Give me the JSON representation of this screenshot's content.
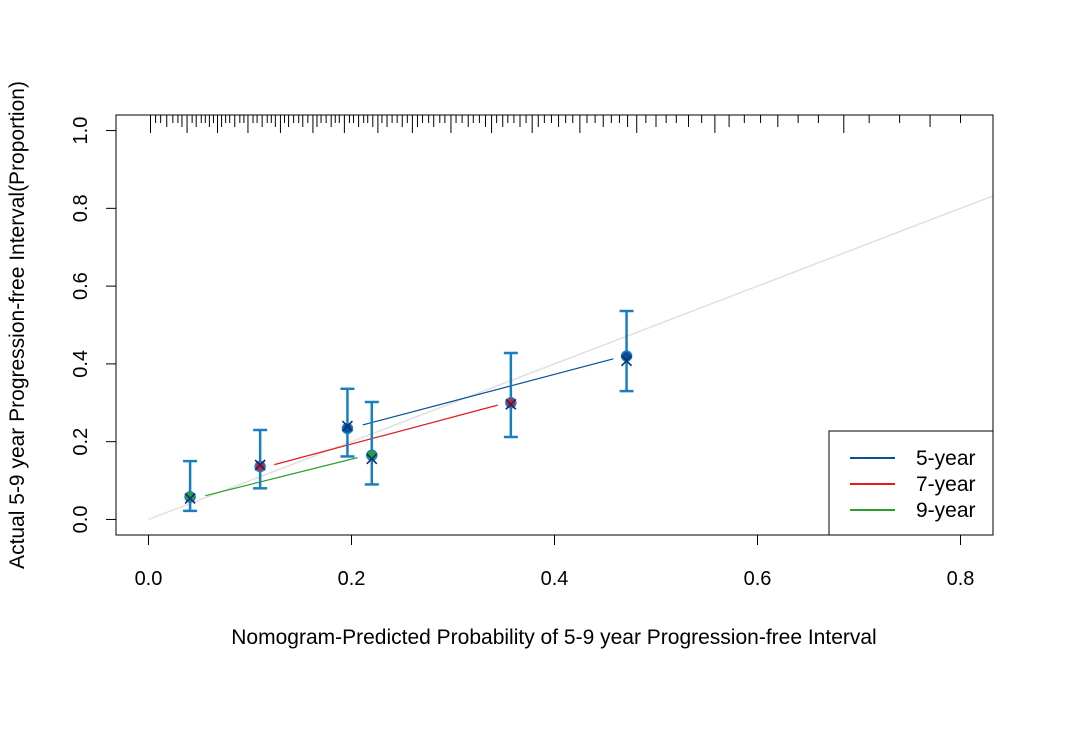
{
  "chart_data": {
    "type": "scatter",
    "title": "",
    "xlabel": "Nomogram-Predicted Probability of 5-9 year Progression-free Interval",
    "ylabel": "Actual 5-9 year Progression-free Interval(Proportion)",
    "xlim": [
      -0.032,
      0.832
    ],
    "ylim": [
      -0.04,
      1.04
    ],
    "xticks": [
      "0.0",
      "0.2",
      "0.4",
      "0.6",
      "0.8"
    ],
    "yticks": [
      "0.0",
      "0.2",
      "0.4",
      "0.6",
      "0.8",
      "1.0"
    ],
    "grid": false,
    "legend_position": "bottom-right",
    "reference_line": {
      "from": [
        0,
        0
      ],
      "to": [
        1,
        1
      ],
      "color": "#e0e0e0"
    },
    "series": [
      {
        "name": "5-year",
        "color": "#0a4f99",
        "points": [
          {
            "x": 0.196,
            "y": 0.234,
            "lower": 0.162,
            "upper": 0.336,
            "x_mark": 0.24
          },
          {
            "x": 0.471,
            "y": 0.42,
            "lower": 0.33,
            "upper": 0.536,
            "x_mark": 0.408
          }
        ],
        "fit_line": [
          [
            0.211,
            0.243
          ],
          [
            0.458,
            0.413
          ]
        ]
      },
      {
        "name": "7-year",
        "color": "#e41a1c",
        "points": [
          {
            "x": 0.11,
            "y": 0.136,
            "lower": 0.08,
            "upper": 0.23,
            "x_mark": 0.14
          },
          {
            "x": 0.357,
            "y": 0.3,
            "lower": 0.212,
            "upper": 0.428,
            "x_mark": 0.296
          }
        ],
        "fit_line": [
          [
            0.124,
            0.141
          ],
          [
            0.344,
            0.294
          ]
        ]
      },
      {
        "name": "9-year",
        "color": "#2ca02c",
        "points": [
          {
            "x": 0.041,
            "y": 0.058,
            "lower": 0.022,
            "upper": 0.15,
            "x_mark": 0.054
          },
          {
            "x": 0.22,
            "y": 0.165,
            "lower": 0.09,
            "upper": 0.302,
            "x_mark": 0.156
          }
        ],
        "fit_line": [
          [
            0.056,
            0.061
          ],
          [
            0.206,
            0.159
          ]
        ]
      }
    ],
    "errorbar_color": "#1a7fbf",
    "rug": [
      0.002,
      0.007,
      0.012,
      0.018,
      0.024,
      0.029,
      0.033,
      0.038,
      0.043,
      0.047,
      0.052,
      0.056,
      0.06,
      0.064,
      0.068,
      0.072,
      0.076,
      0.08,
      0.085,
      0.09,
      0.094,
      0.098,
      0.103,
      0.107,
      0.112,
      0.117,
      0.121,
      0.125,
      0.13,
      0.134,
      0.138,
      0.143,
      0.148,
      0.152,
      0.157,
      0.162,
      0.166,
      0.17,
      0.175,
      0.18,
      0.184,
      0.188,
      0.193,
      0.198,
      0.202,
      0.207,
      0.212,
      0.216,
      0.221,
      0.226,
      0.23,
      0.235,
      0.24,
      0.245,
      0.25,
      0.255,
      0.26,
      0.265,
      0.27,
      0.276,
      0.281,
      0.287,
      0.292,
      0.298,
      0.303,
      0.309,
      0.315,
      0.32,
      0.326,
      0.332,
      0.338,
      0.343,
      0.349,
      0.354,
      0.36,
      0.366,
      0.372,
      0.378,
      0.384,
      0.39,
      0.397,
      0.404,
      0.411,
      0.418,
      0.425,
      0.432,
      0.44,
      0.448,
      0.456,
      0.464,
      0.472,
      0.481,
      0.49,
      0.5,
      0.51,
      0.52,
      0.532,
      0.545,
      0.558,
      0.572,
      0.587,
      0.603,
      0.62,
      0.64,
      0.66,
      0.685,
      0.71,
      0.74,
      0.77,
      0.8
    ]
  }
}
